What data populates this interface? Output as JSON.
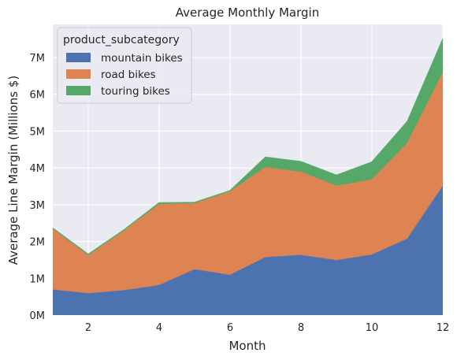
{
  "chart_data": {
    "type": "area",
    "stacked": true,
    "title": "Average Monthly Margin",
    "xlabel": "Month",
    "ylabel": "Average Line Margin (Millions $)",
    "x": [
      1,
      2,
      3,
      4,
      5,
      6,
      7,
      8,
      9,
      10,
      11,
      12
    ],
    "xlim": [
      1,
      12
    ],
    "ylim": [
      0,
      7.9
    ],
    "x_ticks": [
      2,
      4,
      6,
      8,
      10,
      12
    ],
    "y_ticks": [
      0,
      1,
      2,
      3,
      4,
      5,
      6,
      7
    ],
    "y_tick_labels": [
      "0M",
      "1M",
      "2M",
      "3M",
      "4M",
      "5M",
      "6M",
      "7M"
    ],
    "grid": true,
    "legend": {
      "title": "product_subcategory",
      "placement": "upper-left"
    },
    "series": [
      {
        "name": "mountain bikes",
        "color": "#4c72b0",
        "values": [
          0.68,
          0.58,
          0.66,
          0.8,
          1.23,
          1.08,
          1.56,
          1.62,
          1.48,
          1.63,
          2.06,
          3.49
        ]
      },
      {
        "name": "road bikes",
        "color": "#dd8452",
        "values": [
          1.66,
          1.05,
          1.62,
          2.2,
          1.8,
          2.27,
          2.45,
          2.26,
          2.02,
          2.04,
          2.6,
          3.08
        ]
      },
      {
        "name": "touring bikes",
        "color": "#55a868",
        "values": [
          0.02,
          0.02,
          0.03,
          0.05,
          0.03,
          0.03,
          0.28,
          0.29,
          0.3,
          0.49,
          0.6,
          0.93
        ]
      }
    ]
  }
}
